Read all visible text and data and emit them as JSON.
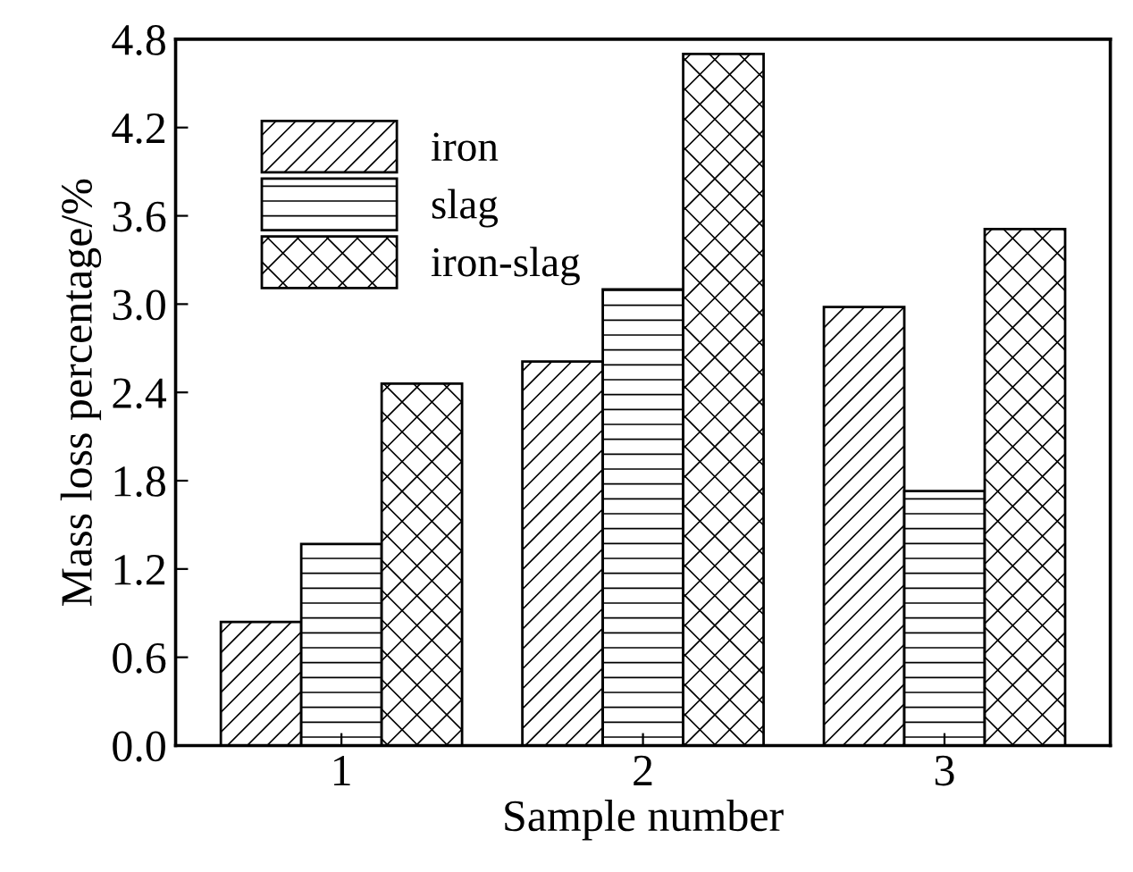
{
  "chart_data": {
    "type": "bar",
    "xlabel": "Sample number",
    "ylabel": "Mass loss percentage/%",
    "categories": [
      "1",
      "2",
      "3"
    ],
    "series": [
      {
        "name": "iron",
        "color": "#000000",
        "values": [
          0.84,
          2.61,
          2.98
        ]
      },
      {
        "name": "slag",
        "color": "#000000",
        "values": [
          1.37,
          3.1,
          1.73
        ]
      },
      {
        "name": "iron-slag",
        "color": "#000000",
        "values": [
          2.46,
          4.7,
          3.51
        ]
      }
    ],
    "ylim": [
      0,
      4.8
    ],
    "yticks": [
      {
        "value": 0,
        "label": "0.0"
      },
      0.6,
      1.2,
      1.8,
      2.4,
      {
        "value": 3,
        "label": "3.0"
      },
      3.6,
      4.2,
      4.8
    ],
    "grid": false,
    "legend": "top left"
  }
}
